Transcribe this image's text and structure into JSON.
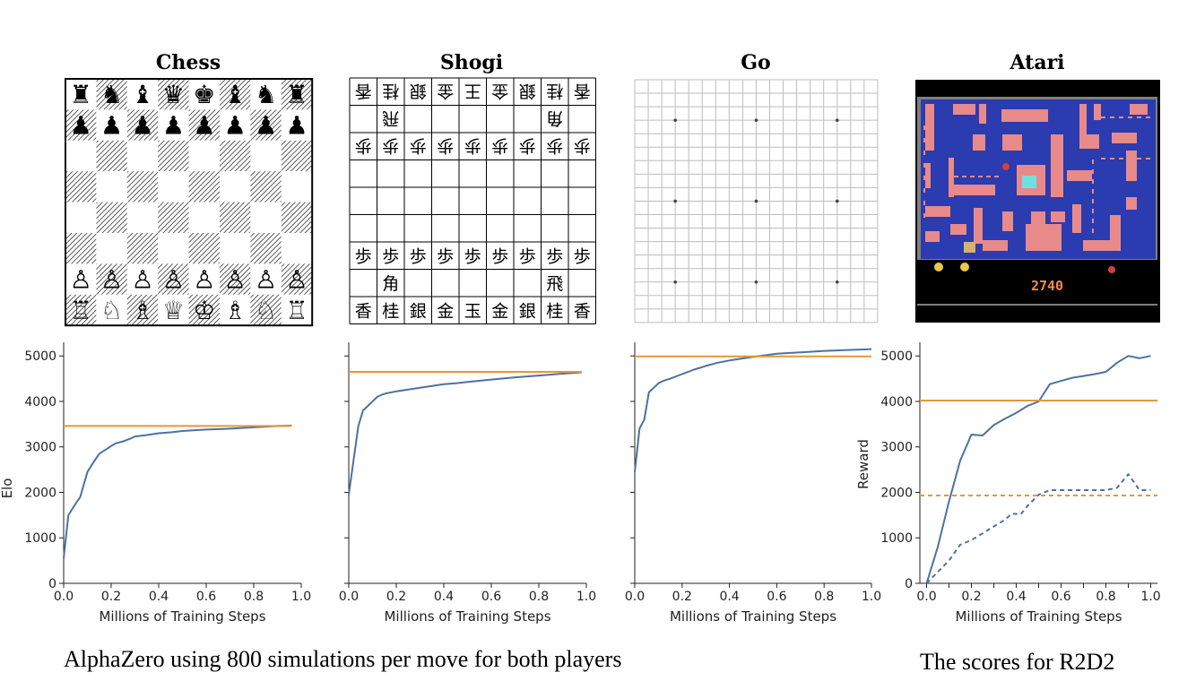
{
  "panels": [
    {
      "id": "chess",
      "title": "Chess"
    },
    {
      "id": "shogi",
      "title": "Shogi"
    },
    {
      "id": "go",
      "title": "Go"
    },
    {
      "id": "atari",
      "title": "Atari"
    }
  ],
  "chess_board": {
    "rows": [
      [
        "♜",
        "♞",
        "♝",
        "♛",
        "♚",
        "♝",
        "♞",
        "♜"
      ],
      [
        "♟",
        "♟",
        "♟",
        "♟",
        "♟",
        "♟",
        "♟",
        "♟"
      ],
      [
        "",
        "",
        "",
        "",
        "",
        "",
        "",
        ""
      ],
      [
        "",
        "",
        "",
        "",
        "",
        "",
        "",
        ""
      ],
      [
        "",
        "",
        "",
        "",
        "",
        "",
        "",
        ""
      ],
      [
        "",
        "",
        "",
        "",
        "",
        "",
        "",
        ""
      ],
      [
        "♙",
        "♙",
        "♙",
        "♙",
        "♙",
        "♙",
        "♙",
        "♙"
      ],
      [
        "♖",
        "♘",
        "♗",
        "♕",
        "♔",
        "♗",
        "♘",
        "♖"
      ]
    ]
  },
  "shogi_board": {
    "rows": [
      [
        "香",
        "桂",
        "銀",
        "金",
        "王",
        "金",
        "銀",
        "桂",
        "香"
      ],
      [
        "",
        "飛",
        "",
        "",
        "",
        "",
        "",
        "角",
        ""
      ],
      [
        "歩",
        "歩",
        "歩",
        "歩",
        "歩",
        "歩",
        "歩",
        "歩",
        "歩"
      ],
      [
        "",
        "",
        "",
        "",
        "",
        "",
        "",
        "",
        ""
      ],
      [
        "",
        "",
        "",
        "",
        "",
        "",
        "",
        "",
        ""
      ],
      [
        "",
        "",
        "",
        "",
        "",
        "",
        "",
        "",
        ""
      ],
      [
        "歩",
        "歩",
        "歩",
        "歩",
        "歩",
        "歩",
        "歩",
        "歩",
        "歩"
      ],
      [
        "",
        "角",
        "",
        "",
        "",
        "",
        "",
        "飛",
        ""
      ],
      [
        "香",
        "桂",
        "銀",
        "金",
        "玉",
        "金",
        "銀",
        "桂",
        "香"
      ]
    ],
    "flipped_rows": [
      0,
      1,
      2
    ]
  },
  "atari_screen": {
    "score": "2740"
  },
  "chart_data": [
    {
      "type": "line",
      "xlabel": "Millions of Training Steps",
      "ylabel": "Elo",
      "xlim": [
        0.0,
        1.0
      ],
      "ylim": [
        0,
        5300
      ],
      "xticks": [
        "0.0",
        "0.2",
        "0.4",
        "0.6",
        "0.8",
        "1.0"
      ],
      "yticks": [
        "0",
        "1000",
        "2000",
        "3000",
        "4000",
        "5000"
      ],
      "show_yticklabels": true,
      "series": [
        {
          "color": "#4c72a0",
          "style": "solid",
          "x": [
            0.0,
            0.02,
            0.05,
            0.07,
            0.1,
            0.13,
            0.15,
            0.18,
            0.2,
            0.22,
            0.25,
            0.28,
            0.3,
            0.35,
            0.4,
            0.45,
            0.5,
            0.6,
            0.7,
            0.8,
            0.9,
            0.96
          ],
          "y": [
            550,
            1500,
            1750,
            1900,
            2450,
            2700,
            2850,
            2950,
            3020,
            3080,
            3120,
            3180,
            3230,
            3260,
            3300,
            3320,
            3350,
            3380,
            3400,
            3430,
            3460,
            3470
          ]
        },
        {
          "color": "#e8963a",
          "style": "solid",
          "x": [
            0.0,
            0.96
          ],
          "y": [
            3460,
            3460
          ]
        }
      ]
    },
    {
      "type": "line",
      "xlabel": "Millions of Training Steps",
      "ylabel": "",
      "xlim": [
        0.0,
        1.0
      ],
      "ylim": [
        0,
        5300
      ],
      "xticks": [
        "0.0",
        "0.2",
        "0.4",
        "0.6",
        "0.8",
        "1.0"
      ],
      "yticks": [
        "0",
        "1000",
        "2000",
        "3000",
        "4000",
        "5000"
      ],
      "show_yticklabels": false,
      "series": [
        {
          "color": "#4c72a0",
          "style": "solid",
          "x": [
            0.0,
            0.02,
            0.04,
            0.06,
            0.08,
            0.1,
            0.12,
            0.14,
            0.16,
            0.2,
            0.25,
            0.3,
            0.35,
            0.4,
            0.45,
            0.5,
            0.6,
            0.7,
            0.8,
            0.9,
            0.98
          ],
          "y": [
            1950,
            2700,
            3450,
            3800,
            3900,
            4000,
            4100,
            4150,
            4180,
            4220,
            4260,
            4300,
            4340,
            4380,
            4400,
            4430,
            4480,
            4530,
            4570,
            4610,
            4640
          ]
        },
        {
          "color": "#e8963a",
          "style": "solid",
          "x": [
            0.0,
            0.98
          ],
          "y": [
            4650,
            4650
          ]
        }
      ]
    },
    {
      "type": "line",
      "xlabel": "Millions of Training Steps",
      "ylabel": "",
      "xlim": [
        0.0,
        1.0
      ],
      "ylim": [
        0,
        5300
      ],
      "xticks": [
        "0.0",
        "0.2",
        "0.4",
        "0.6",
        "0.8",
        "1.0"
      ],
      "yticks": [
        "0",
        "1000",
        "2000",
        "3000",
        "4000",
        "5000"
      ],
      "show_yticklabels": false,
      "series": [
        {
          "color": "#4c72a0",
          "style": "solid",
          "x": [
            0.0,
            0.02,
            0.04,
            0.06,
            0.08,
            0.1,
            0.12,
            0.15,
            0.2,
            0.25,
            0.3,
            0.35,
            0.4,
            0.5,
            0.6,
            0.7,
            0.8,
            0.9,
            1.0
          ],
          "y": [
            2450,
            3400,
            3600,
            4200,
            4300,
            4400,
            4450,
            4500,
            4600,
            4700,
            4780,
            4850,
            4900,
            4980,
            5050,
            5080,
            5110,
            5130,
            5150
          ]
        },
        {
          "color": "#e8963a",
          "style": "solid",
          "x": [
            0.0,
            1.0
          ],
          "y": [
            4990,
            4990
          ]
        }
      ]
    },
    {
      "type": "line",
      "xlabel": "Millions of Training Steps",
      "ylabel": "Reward",
      "xlim": [
        -0.03,
        1.03
      ],
      "ylim": [
        0,
        5300
      ],
      "xticks": [
        "0.0",
        "0.1",
        "0.2",
        "0.3",
        "0.4",
        "0.5",
        "0.6",
        "0.7",
        "0.8",
        "0.9",
        "1.0"
      ],
      "yticks": [
        "0",
        "1000",
        "2000",
        "3000",
        "4000",
        "5000"
      ],
      "show_yticklabels": true,
      "series": [
        {
          "color": "#4c72a0",
          "style": "solid",
          "x": [
            0.0,
            0.05,
            0.1,
            0.15,
            0.2,
            0.25,
            0.3,
            0.35,
            0.4,
            0.45,
            0.5,
            0.55,
            0.6,
            0.65,
            0.7,
            0.75,
            0.8,
            0.85,
            0.9,
            0.95,
            1.0
          ],
          "y": [
            0,
            800,
            1800,
            2700,
            3270,
            3250,
            3480,
            3620,
            3750,
            3900,
            4000,
            4380,
            4450,
            4520,
            4560,
            4600,
            4650,
            4850,
            5000,
            4950,
            5000
          ]
        },
        {
          "color": "#4c72a0",
          "style": "dashed",
          "x": [
            0.0,
            0.05,
            0.1,
            0.15,
            0.2,
            0.25,
            0.3,
            0.35,
            0.38,
            0.42,
            0.45,
            0.5,
            0.55,
            0.6,
            0.7,
            0.8,
            0.85,
            0.9,
            0.95,
            1.0
          ],
          "y": [
            0,
            250,
            500,
            850,
            950,
            1100,
            1250,
            1400,
            1530,
            1520,
            1700,
            1950,
            2050,
            2050,
            2050,
            2050,
            2100,
            2400,
            2050,
            2050
          ]
        },
        {
          "color": "#e8963a",
          "style": "solid",
          "x": [
            -0.03,
            1.03
          ],
          "y": [
            4020,
            4020
          ]
        },
        {
          "color": "#e8963a",
          "style": "dashed",
          "x": [
            -0.03,
            1.03
          ],
          "y": [
            1930,
            1930
          ]
        }
      ]
    }
  ],
  "captions": {
    "left": "AlphaZero using 800 simulations per move for both players",
    "right": "The scores for R2D2"
  }
}
